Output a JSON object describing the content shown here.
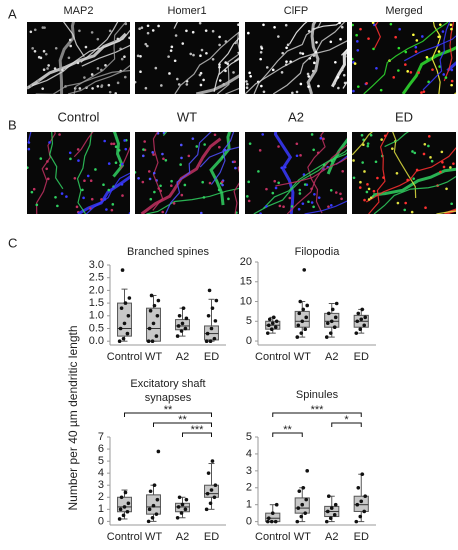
{
  "panel_a": {
    "label": "A",
    "images": [
      "MAP2",
      "Homer1",
      "ClFP",
      "Merged"
    ]
  },
  "panel_b": {
    "label": "B",
    "images": [
      "Control",
      "WT",
      "A2",
      "ED"
    ]
  },
  "panel_c": {
    "label": "C",
    "ylabel": "Number per 40 µm dendritic length"
  },
  "chart_data": [
    {
      "type": "box",
      "title": "Branched spines",
      "categories": [
        "Control",
        "WT",
        "A2",
        "ED"
      ],
      "stats": [
        {
          "whislo": 0,
          "q1": 0.2,
          "med": 0.5,
          "q3": 1.5,
          "whishi": 2.05
        },
        {
          "whislo": 0,
          "q1": 0,
          "med": 0.5,
          "q3": 1.3,
          "whishi": 1.8
        },
        {
          "whislo": 0.2,
          "q1": 0.45,
          "med": 0.6,
          "q3": 0.85,
          "whishi": 1.3
        },
        {
          "whislo": 0,
          "q1": 0.05,
          "med": 0.3,
          "q3": 0.6,
          "whishi": 1.65
        }
      ],
      "points": [
        [
          0,
          0.1,
          0.3,
          0.5,
          0.7,
          1,
          1.3,
          1.5,
          1.7,
          2.8
        ],
        [
          0,
          0,
          0.2,
          0.5,
          0.7,
          1,
          1.2,
          1.4,
          1.6,
          1.8
        ],
        [
          0.2,
          0.4,
          0.5,
          0.6,
          0.7,
          0.9,
          1,
          1.3
        ],
        [
          0,
          0,
          0.1,
          0.3,
          0.5,
          0.8,
          1,
          1.3,
          1.6,
          2
        ]
      ],
      "ylim": [
        -0.15,
        3.0
      ],
      "yticks": [
        {
          "value": 0,
          "label": "0.0"
        },
        0.5,
        {
          "value": 1,
          "label": "1.0"
        },
        1.5,
        {
          "value": 2,
          "label": "2.0"
        },
        2.5,
        {
          "value": 3,
          "label": "3.0"
        }
      ],
      "significance": []
    },
    {
      "type": "box",
      "title": "Filopodia",
      "categories": [
        "Control",
        "WT",
        "A2",
        "ED"
      ],
      "stats": [
        {
          "whislo": 2,
          "q1": 3,
          "med": 4,
          "q3": 5,
          "whishi": 6
        },
        {
          "whislo": 1,
          "q1": 3.5,
          "med": 5,
          "q3": 7.5,
          "whishi": 10
        },
        {
          "whislo": 1,
          "q1": 3.5,
          "med": 5,
          "q3": 7,
          "whishi": 9.5
        },
        {
          "whislo": 2,
          "q1": 3.5,
          "med": 5,
          "q3": 6.5,
          "whishi": 8
        }
      ],
      "points": [
        [
          2,
          3,
          3.5,
          4,
          4.5,
          5,
          5.5,
          6
        ],
        [
          1,
          2,
          3,
          4,
          5,
          6,
          7,
          8,
          9,
          10,
          18
        ],
        [
          1,
          2,
          3.5,
          4.5,
          5,
          6,
          7,
          8,
          9.5
        ],
        [
          2,
          3,
          4,
          5,
          5.5,
          6,
          7,
          8
        ]
      ],
      "ylim": [
        -1,
        20
      ],
      "yticks": [
        0,
        5,
        10,
        15,
        20
      ],
      "significance": []
    },
    {
      "type": "box",
      "title": "Excitatory shaft synapses",
      "categories": [
        "Control",
        "WT",
        "A2",
        "ED"
      ],
      "stats": [
        {
          "whislo": 0.2,
          "q1": 0.8,
          "med": 1.2,
          "q3": 2,
          "whishi": 2.6
        },
        {
          "whislo": 0,
          "q1": 0.6,
          "med": 1.2,
          "q3": 2.2,
          "whishi": 3
        },
        {
          "whislo": 0.3,
          "q1": 0.8,
          "med": 1.2,
          "q3": 1.5,
          "whishi": 2
        },
        {
          "whislo": 1,
          "q1": 2,
          "med": 2.3,
          "q3": 3,
          "whishi": 4.8
        }
      ],
      "points": [
        [
          0.2,
          0.5,
          0.8,
          1,
          1.2,
          1.5,
          2,
          2.4
        ],
        [
          0,
          0.3,
          0.6,
          1,
          1.3,
          1.8,
          2.5,
          3,
          5.8
        ],
        [
          0.3,
          0.7,
          1,
          1.2,
          1.4,
          1.8,
          2
        ],
        [
          1,
          1.5,
          2,
          2.3,
          2.6,
          3,
          4,
          5
        ]
      ],
      "ylim": [
        -0.3,
        7
      ],
      "yticks": [
        0,
        1,
        2,
        3,
        4,
        5,
        6,
        7
      ],
      "significance": [
        {
          "from": 0,
          "to": 3,
          "label": "**"
        },
        {
          "from": 1,
          "to": 3,
          "label": "**"
        },
        {
          "from": 2,
          "to": 3,
          "label": "***"
        }
      ]
    },
    {
      "type": "box",
      "title": "Spinules",
      "categories": [
        "Control",
        "WT",
        "A2",
        "ED"
      ],
      "stats": [
        {
          "whislo": 0,
          "q1": 0,
          "med": 0.2,
          "q3": 0.5,
          "whishi": 1
        },
        {
          "whislo": 0,
          "q1": 0.5,
          "med": 0.8,
          "q3": 1.4,
          "whishi": 2
        },
        {
          "whislo": 0,
          "q1": 0.3,
          "med": 0.6,
          "q3": 0.9,
          "whishi": 1.5
        },
        {
          "whislo": 0,
          "q1": 0.6,
          "med": 1,
          "q3": 1.5,
          "whishi": 2.8
        }
      ],
      "points": [
        [
          0,
          0,
          0,
          0.2,
          0.5,
          1
        ],
        [
          0,
          0.3,
          0.5,
          0.8,
          1,
          1.3,
          1.8,
          2,
          3
        ],
        [
          0,
          0.2,
          0.4,
          0.6,
          0.8,
          1,
          1.5
        ],
        [
          0,
          0.3,
          0.6,
          1,
          1.2,
          1.5,
          2,
          2.8
        ]
      ],
      "ylim": [
        -0.2,
        5
      ],
      "yticks": [
        0,
        1,
        2,
        3,
        4,
        5
      ],
      "significance": [
        {
          "from": 0,
          "to": 3,
          "label": "***"
        },
        {
          "from": 2,
          "to": 3,
          "label": "*"
        },
        {
          "from": 0,
          "to": 1,
          "label": "**"
        }
      ]
    }
  ]
}
